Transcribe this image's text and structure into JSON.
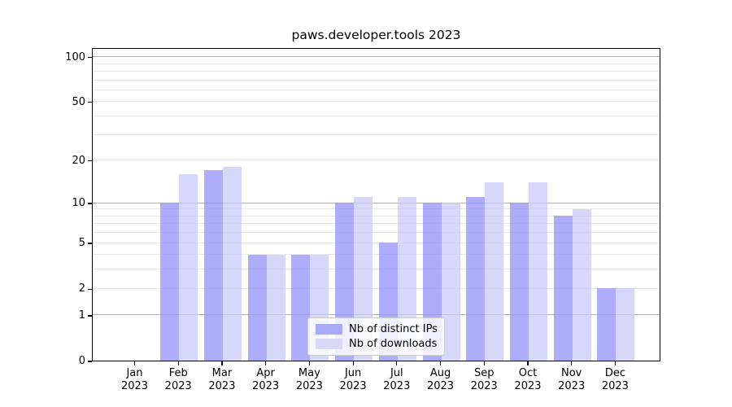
{
  "title": "paws.developer.tools 2023",
  "chart_data": {
    "type": "bar",
    "title": "paws.developer.tools 2023",
    "categories": [
      "Jan",
      "Feb",
      "Mar",
      "Apr",
      "May",
      "Jun",
      "Jul",
      "Aug",
      "Sep",
      "Oct",
      "Nov",
      "Dec"
    ],
    "year": "2023",
    "series": [
      {
        "name": "Nb of distinct IPs",
        "values": [
          0,
          10,
          17,
          4,
          4,
          10,
          5,
          10,
          11,
          10,
          8,
          2
        ]
      },
      {
        "name": "Nb of downloads",
        "values": [
          0,
          16,
          18,
          4,
          4,
          11,
          11,
          10,
          14,
          14,
          9,
          2
        ]
      }
    ],
    "yscale": "log10(value+1)",
    "yticks": [
      0,
      1,
      2,
      5,
      10,
      20,
      50,
      100
    ],
    "grid_minor_values": [
      2,
      3,
      4,
      5,
      6,
      7,
      8,
      9,
      20,
      30,
      40,
      50,
      60,
      70,
      80,
      90
    ],
    "grid_major_values": [
      1,
      10,
      100
    ],
    "ylim": [
      0,
      115
    ],
    "grid": true,
    "legend_position": "bottom-center"
  },
  "colors": {
    "bar_distinct_ips": "rgba(150,150,250,0.78)",
    "bar_downloads": "rgba(200,200,248,0.72)",
    "legend_swatch_ips": "#a9aaf6",
    "legend_swatch_downloads": "#d8d8f8",
    "grid_major": "#b3b3b3",
    "grid_minor": "#e8e8e8",
    "axis": "#000000"
  }
}
